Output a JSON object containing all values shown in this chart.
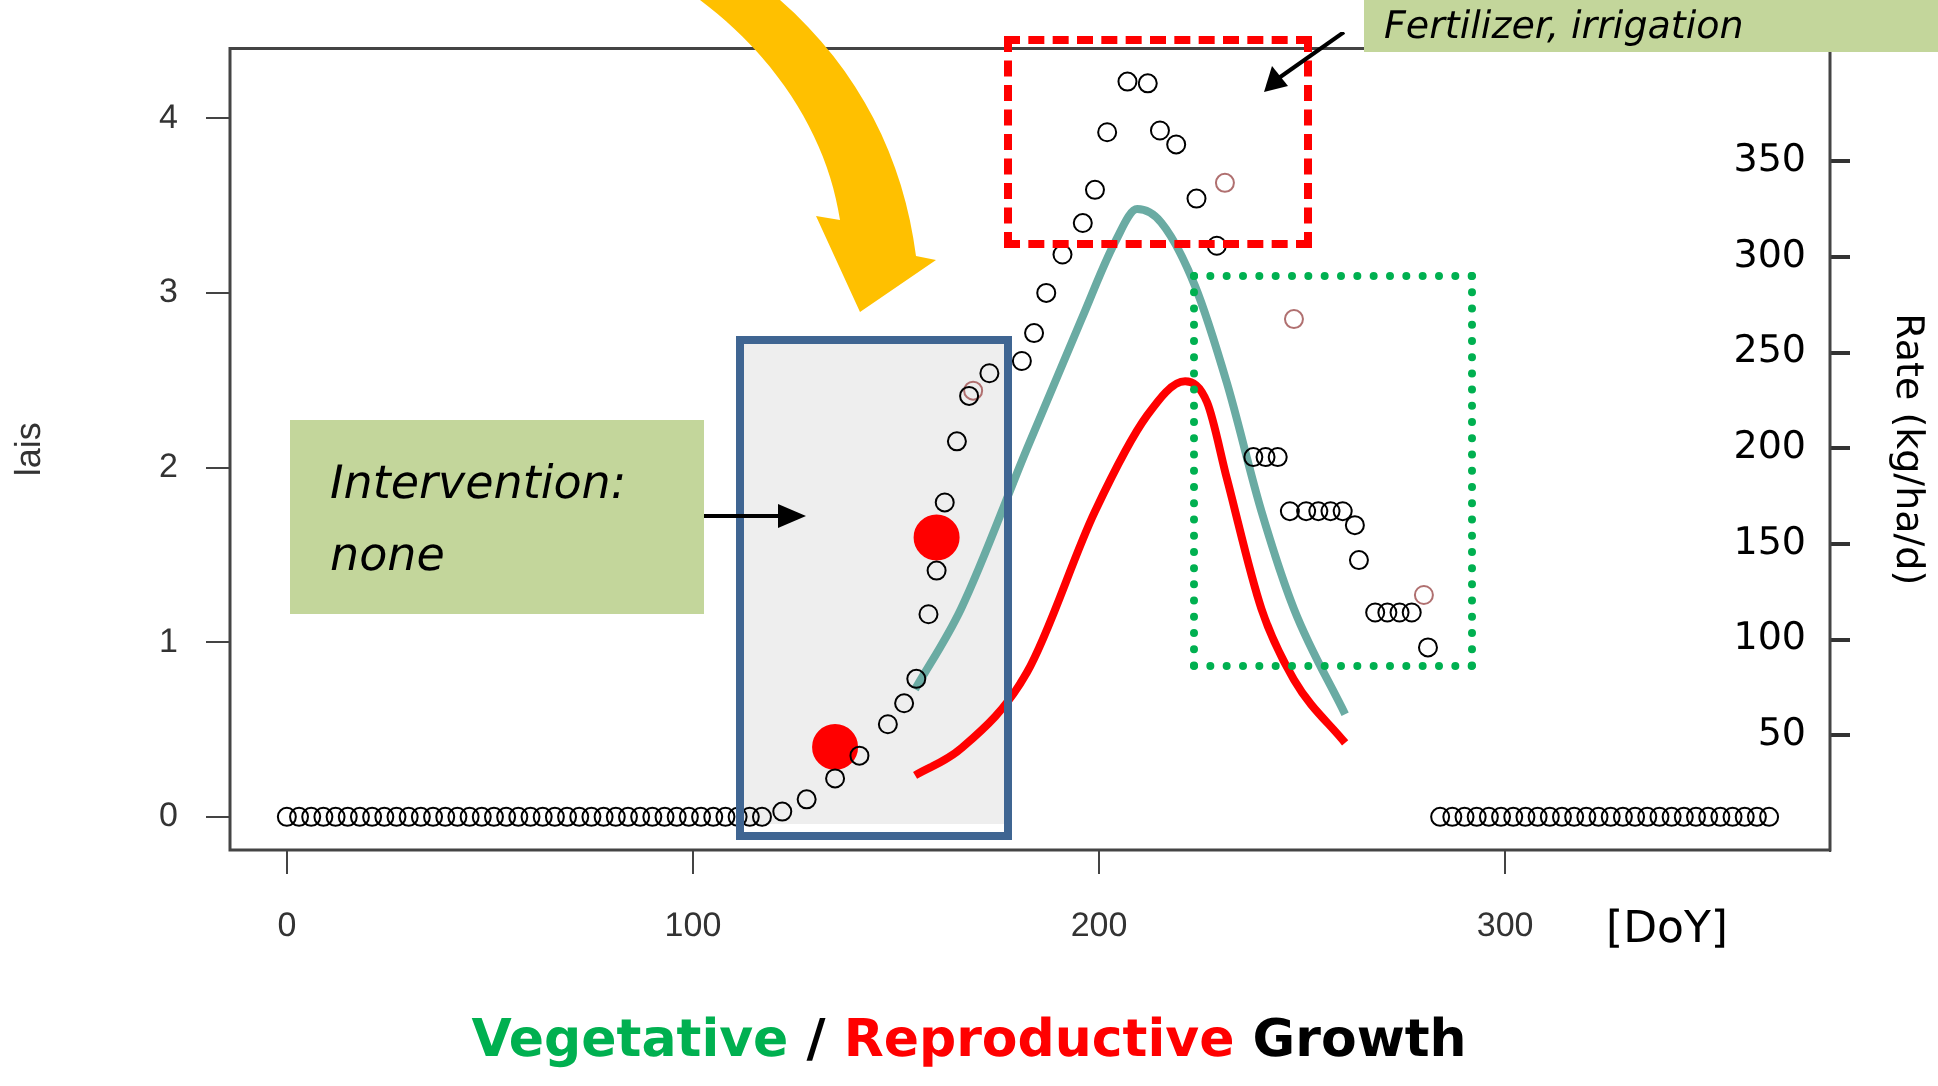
{
  "chart_data": {
    "type": "scatter",
    "xlabel": "[DoY]",
    "ylabel": "lais",
    "y2label": "Rate (kg/ha/d)",
    "annotations": [
      "Intervention: none",
      "Fertilizer, irrigation",
      "Vegetative",
      "/",
      "Reproductive",
      "Growth"
    ],
    "xlim": [
      -14,
      380
    ],
    "xticks": [
      0,
      100,
      200,
      300
    ],
    "ylim": [
      -0.19,
      4.4
    ],
    "yticks": [
      0,
      1,
      2,
      3,
      4
    ],
    "bands": [
      {
        "axis": "x",
        "from": 112,
        "to": 177,
        "color": "#eeeeee"
      }
    ],
    "y2lim": [
      -10,
      409
    ],
    "y2ticks": [
      50,
      100,
      150,
      200,
      250,
      300,
      350
    ],
    "grid": false,
    "legend": false,
    "marker": "circle",
    "series": [
      {
        "color": "#000000",
        "x": [
          0,
          3,
          6,
          9,
          12,
          15,
          18,
          21,
          24,
          27,
          30,
          33,
          36,
          39,
          42,
          45,
          48,
          51,
          54,
          57,
          60,
          63,
          66,
          69,
          72,
          75,
          78,
          81,
          84,
          87,
          90,
          93,
          96,
          99,
          102,
          105,
          108,
          111,
          114,
          117,
          122,
          128,
          135,
          141,
          148,
          152,
          155,
          158,
          160,
          162,
          165,
          168,
          173,
          181,
          184,
          187,
          191,
          196,
          199,
          202,
          207,
          212,
          215,
          219,
          224,
          229,
          238,
          241,
          244,
          247,
          251,
          254,
          257,
          260,
          263,
          264,
          268,
          271,
          274,
          277,
          281,
          284,
          287,
          290,
          293,
          296,
          299,
          302,
          305,
          308,
          311,
          314,
          317,
          320,
          323,
          326,
          329,
          332,
          335,
          338,
          341,
          344,
          347,
          350,
          353,
          356,
          359,
          362,
          365
        ],
        "values": [
          0,
          0,
          0,
          0,
          0,
          0,
          0,
          0,
          0,
          0,
          0,
          0,
          0,
          0,
          0,
          0,
          0,
          0,
          0,
          0,
          0,
          0,
          0,
          0,
          0,
          0,
          0,
          0,
          0,
          0,
          0,
          0,
          0,
          0,
          0,
          0,
          0,
          0,
          0,
          0,
          0.03,
          0.1,
          0.22,
          0.35,
          0.53,
          0.65,
          0.79,
          1.16,
          1.41,
          1.8,
          2.15,
          2.41,
          2.54,
          2.61,
          2.77,
          3.0,
          3.22,
          3.4,
          3.59,
          3.92,
          4.21,
          4.2,
          3.93,
          3.85,
          3.54,
          3.27,
          2.06,
          2.06,
          2.06,
          1.75,
          1.75,
          1.75,
          1.75,
          1.75,
          1.67,
          1.47,
          1.17,
          1.17,
          1.17,
          1.17,
          0.97,
          0,
          0,
          0,
          0,
          0,
          0,
          0,
          0,
          0,
          0,
          0,
          0,
          0,
          0,
          0,
          0,
          0,
          0,
          0,
          0,
          0,
          0,
          0,
          0,
          0,
          0,
          0,
          0
        ]
      },
      {
        "color": "#b07070",
        "x": [
          169,
          199,
          231,
          248,
          280
        ],
        "values": [
          2.44,
          null,
          3.63,
          2.85,
          1.27
        ]
      },
      {
        "type": "bubble",
        "color": "#ff0000",
        "x": [
          135,
          160
        ],
        "values": [
          0.4,
          1.6
        ],
        "sizes": [
          1,
          1
        ]
      },
      {
        "type": "line",
        "axis": "y2",
        "marker": "none",
        "color": "#6aaba3",
        "x": [
          154.7,
          166,
          182.3,
          195.6,
          204,
          209.4,
          215.3,
          223.6,
          231.5,
          240,
          248,
          260.6
        ],
        "values": [
          74,
          116,
          200,
          267,
          308,
          325,
          318,
          285,
          234,
          167,
          116,
          61
        ]
      },
      {
        "type": "line",
        "axis": "y2",
        "marker": "none",
        "color": "#ff0000",
        "x": [
          154.7,
          166,
          182.3,
          199,
          211.8,
          221.2,
          226.6,
          231.5,
          240,
          248,
          260.6
        ],
        "values": [
          29,
          43,
          83,
          167,
          217,
          235,
          224,
          184,
          116,
          79,
          46
        ]
      }
    ]
  }
}
